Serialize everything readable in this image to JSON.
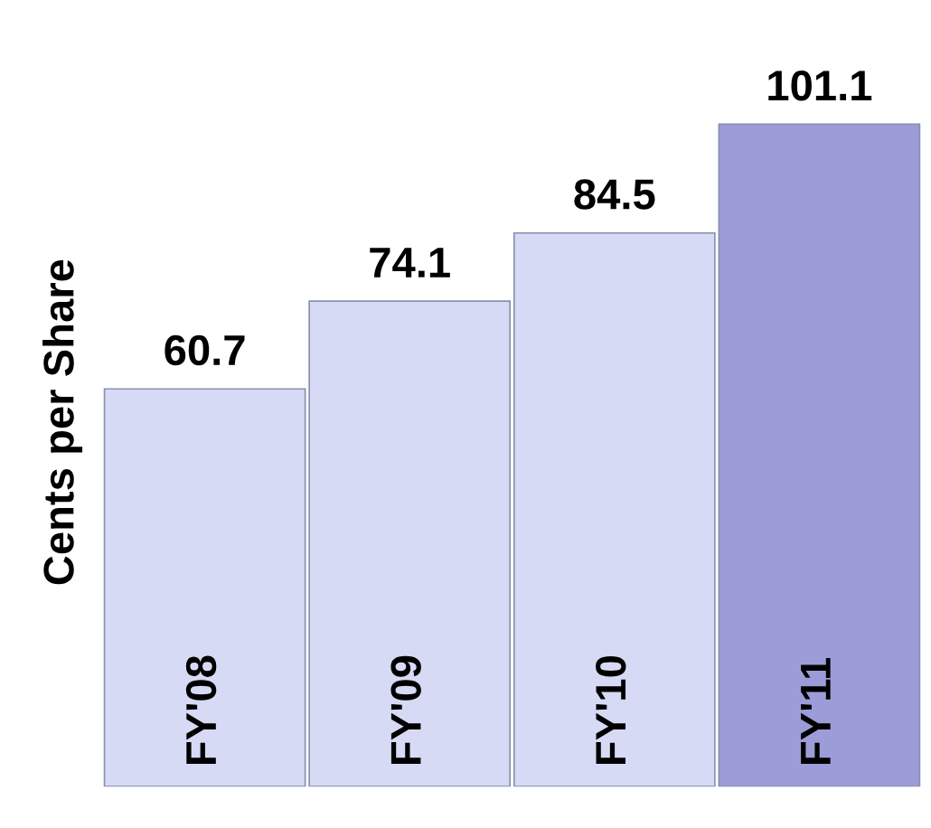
{
  "chart_data": {
    "type": "bar",
    "ylabel": "Cents per Share",
    "categories": [
      "FY'08",
      "FY'09",
      "FY'10",
      "FY'11"
    ],
    "values": [
      60.7,
      74.1,
      84.5,
      101.1
    ],
    "colors": [
      "#d6daf4",
      "#d6daf4",
      "#d6daf4",
      "#9c9cd8"
    ],
    "data_labels": true
  }
}
